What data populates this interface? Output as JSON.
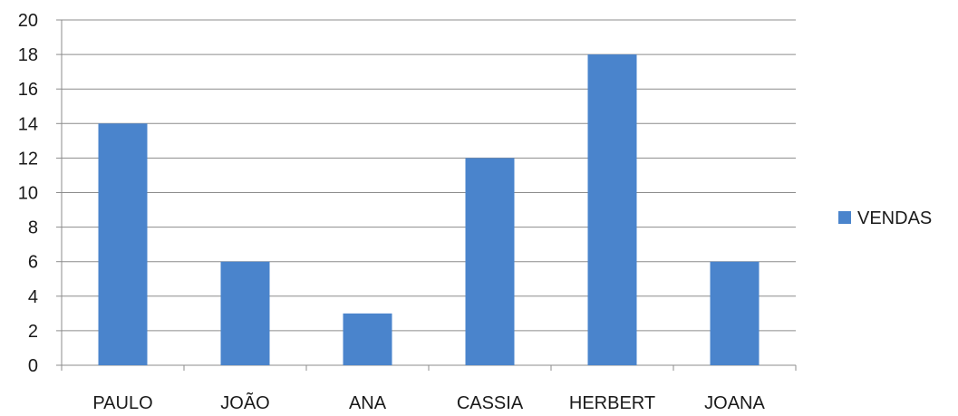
{
  "chart_data": {
    "type": "bar",
    "categories": [
      "PAULO",
      "JOÃO",
      "ANA",
      "CASSIA",
      "HERBERT",
      "JOANA"
    ],
    "series": [
      {
        "name": "VENDAS",
        "values": [
          14,
          6,
          3,
          12,
          18,
          6
        ],
        "color": "#4a84cc"
      }
    ],
    "ylim": [
      0,
      20
    ],
    "yticks": [
      0,
      2,
      4,
      6,
      8,
      10,
      12,
      14,
      16,
      18,
      20
    ],
    "grid": true,
    "legend": {
      "position": "right"
    }
  }
}
